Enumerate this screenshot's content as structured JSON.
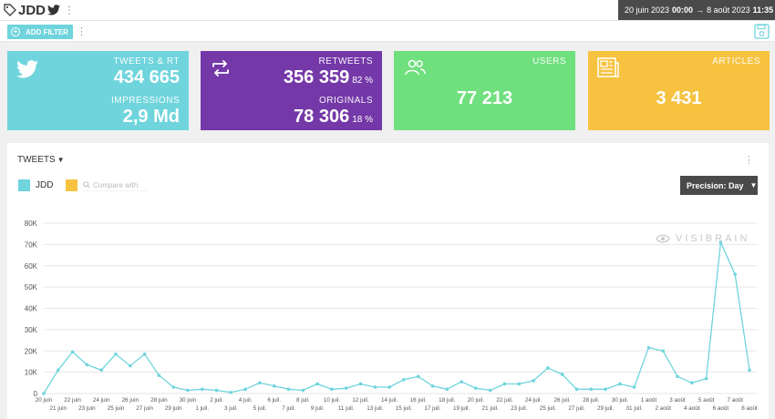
{
  "header": {
    "account": "JDD",
    "date_start": "20 juin 2023",
    "time_start": "00:00",
    "date_end": "8 août 2023",
    "time_end": "11:35",
    "arrow": "→"
  },
  "filterbar": {
    "add_filter_label": "ADD FILTER"
  },
  "cards": {
    "tweets": {
      "label": "TWEETS & RT",
      "value": "434 665",
      "impr_label": "IMPRESSIONS",
      "impr_value": "2,9 Md"
    },
    "retweets": {
      "label": "RETWEETS",
      "value": "356 359",
      "pct": "82 %",
      "orig_label": "ORIGINALS",
      "orig_value": "78 306",
      "orig_pct": "18 %"
    },
    "users": {
      "label": "USERS",
      "value": "77 213"
    },
    "articles": {
      "label": "ARTICLES",
      "value": "3 431"
    }
  },
  "panel": {
    "title": "TWEETS",
    "legend": "JDD",
    "compare_placeholder": "Compare with",
    "precision_label": "Precision: Day",
    "watermark": "VISIBRAIN"
  },
  "colors": {
    "series": "#6fd4dc",
    "compare": "#f6c240",
    "grid": "#e5e5e5"
  },
  "chart_data": {
    "type": "line",
    "ylim": [
      0,
      80000
    ],
    "yticks": [
      0,
      10000,
      20000,
      30000,
      40000,
      50000,
      60000,
      70000,
      80000
    ],
    "ytick_labels": [
      "0",
      "10K",
      "20K",
      "30K",
      "40K",
      "50K",
      "60K",
      "70K",
      "80K"
    ],
    "x": [
      "20 juin",
      "21 juin",
      "22 juin",
      "23 juin",
      "24 juin",
      "25 juin",
      "26 juin",
      "27 juin",
      "28 juin",
      "29 juin",
      "30 juin",
      "1 juil.",
      "2 juil.",
      "3 juil.",
      "4 juil.",
      "5 juil.",
      "6 juil.",
      "7 juil.",
      "8 juil.",
      "9 juil.",
      "10 juil.",
      "11 juil.",
      "12 juil.",
      "13 juil.",
      "14 juil.",
      "15 juil.",
      "16 juil.",
      "17 juil.",
      "18 juil.",
      "19 juil.",
      "20 juil.",
      "21 juil.",
      "22 juil.",
      "23 juil.",
      "24 juil.",
      "25 juil.",
      "26 juil.",
      "27 juil.",
      "28 juil.",
      "29 juil.",
      "30 juil.",
      "31 juil.",
      "1 août",
      "2 août",
      "3 août",
      "4 août",
      "5 août",
      "6 août",
      "7 août",
      "8 août"
    ],
    "series": [
      {
        "name": "JDD",
        "values": [
          0,
          11000,
          19500,
          13500,
          11000,
          18500,
          13000,
          18500,
          8500,
          3000,
          1500,
          2000,
          1500,
          500,
          2000,
          5000,
          3500,
          2000,
          1500,
          4500,
          2000,
          2500,
          4500,
          3000,
          3000,
          6500,
          8000,
          3500,
          2000,
          5500,
          2500,
          1500,
          4500,
          4500,
          6000,
          12000,
          9000,
          2000,
          2000,
          2000,
          4500,
          3000,
          21500,
          20000,
          8000,
          5000,
          7000,
          71000,
          56000,
          11000
        ]
      }
    ]
  }
}
